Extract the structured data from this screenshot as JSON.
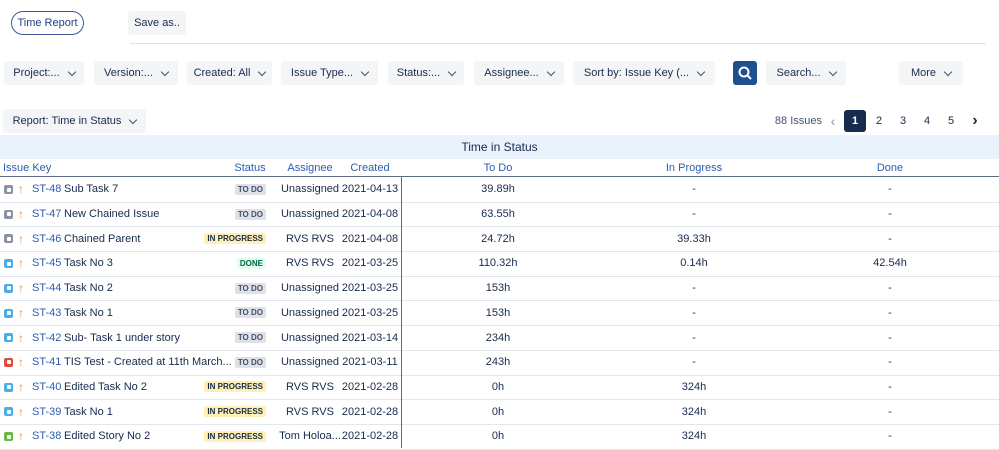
{
  "toolbar": {
    "time_report": "Time Report",
    "save_as": "Save as.."
  },
  "filters": [
    "Project:...",
    "Version:...",
    "Created: All",
    "Issue Type...",
    "Status:...",
    "Assignee...",
    "Sort by: Issue Key (..."
  ],
  "search": "Search...",
  "more": "More",
  "report": "Report: Time in Status",
  "pagination": {
    "count": "88 Issues",
    "pages": [
      "1",
      "2",
      "3",
      "4",
      "5"
    ],
    "current": "1"
  },
  "table": {
    "title": "Time in Status",
    "columns": [
      "Issue Key",
      "Status",
      "Assignee",
      "Created",
      "To Do",
      "In Progress",
      "Done"
    ],
    "rows": [
      {
        "icon": "#8993a4",
        "key": "ST-48",
        "summary": "Sub Task 7",
        "status": {
          "label": "TO DO",
          "bg": "#dfe1e6",
          "fg": "#42526e"
        },
        "assignee": "Unassigned",
        "created": "2021-04-13",
        "todo": "39.89h",
        "in_progress": "-",
        "done": "-"
      },
      {
        "icon": "#8993a4",
        "key": "ST-47",
        "summary": "New Chained Issue",
        "status": {
          "label": "TO DO",
          "bg": "#dfe1e6",
          "fg": "#42526e"
        },
        "assignee": "Unassigned",
        "created": "2021-04-08",
        "todo": "63.55h",
        "in_progress": "-",
        "done": "-"
      },
      {
        "icon": "#8993a4",
        "key": "ST-46",
        "summary": "Chained Parent",
        "status": {
          "label": "IN PROGRESS",
          "bg": "#fff0b3",
          "fg": "#172b4d"
        },
        "assignee": "RVS RVS",
        "created": "2021-04-08",
        "todo": "24.72h",
        "in_progress": "39.33h",
        "done": "-"
      },
      {
        "icon": "#4bade8",
        "key": "ST-45",
        "summary": "Task No 3",
        "status": {
          "label": "DONE",
          "bg": "#e3fcef",
          "fg": "#006644"
        },
        "assignee": "RVS RVS",
        "created": "2021-03-25",
        "todo": "110.32h",
        "in_progress": "0.14h",
        "done": "42.54h"
      },
      {
        "icon": "#4bade8",
        "key": "ST-44",
        "summary": "Task No 2",
        "status": {
          "label": "TO DO",
          "bg": "#dfe1e6",
          "fg": "#42526e"
        },
        "assignee": "Unassigned",
        "created": "2021-03-25",
        "todo": "153h",
        "in_progress": "-",
        "done": "-"
      },
      {
        "icon": "#4bade8",
        "key": "ST-43",
        "summary": "Task No 1",
        "status": {
          "label": "TO DO",
          "bg": "#dfe1e6",
          "fg": "#42526e"
        },
        "assignee": "Unassigned",
        "created": "2021-03-25",
        "todo": "153h",
        "in_progress": "-",
        "done": "-"
      },
      {
        "icon": "#4bade8",
        "key": "ST-42",
        "summary": "Sub- Task 1 under story",
        "status": {
          "label": "TO DO",
          "bg": "#dfe1e6",
          "fg": "#42526e"
        },
        "assignee": "Unassigned",
        "created": "2021-03-14",
        "todo": "234h",
        "in_progress": "-",
        "done": "-"
      },
      {
        "icon": "#e5493a",
        "key": "ST-41",
        "summary": "TIS Test - Created at 11th March...",
        "status": {
          "label": "TO DO",
          "bg": "#dfe1e6",
          "fg": "#42526e"
        },
        "assignee": "Unassigned",
        "created": "2021-03-11",
        "todo": "243h",
        "in_progress": "-",
        "done": "-"
      },
      {
        "icon": "#4bade8",
        "key": "ST-40",
        "summary": "Edited Task No 2",
        "status": {
          "label": "IN PROGRESS",
          "bg": "#fff0b3",
          "fg": "#172b4d"
        },
        "assignee": "RVS RVS",
        "created": "2021-02-28",
        "todo": "0h",
        "in_progress": "324h",
        "done": "-"
      },
      {
        "icon": "#4bade8",
        "key": "ST-39",
        "summary": "Task No 1",
        "status": {
          "label": "IN PROGRESS",
          "bg": "#fff0b3",
          "fg": "#172b4d"
        },
        "assignee": "RVS RVS",
        "created": "2021-02-28",
        "todo": "0h",
        "in_progress": "324h",
        "done": "-"
      },
      {
        "icon": "#63ba3c",
        "key": "ST-38",
        "summary": "Edited Story No 2",
        "status": {
          "label": "IN PROGRESS",
          "bg": "#fff0b3",
          "fg": "#172b4d"
        },
        "assignee": "Tom Holoa...",
        "created": "2021-02-28",
        "todo": "0h",
        "in_progress": "324h",
        "done": "-"
      }
    ]
  }
}
